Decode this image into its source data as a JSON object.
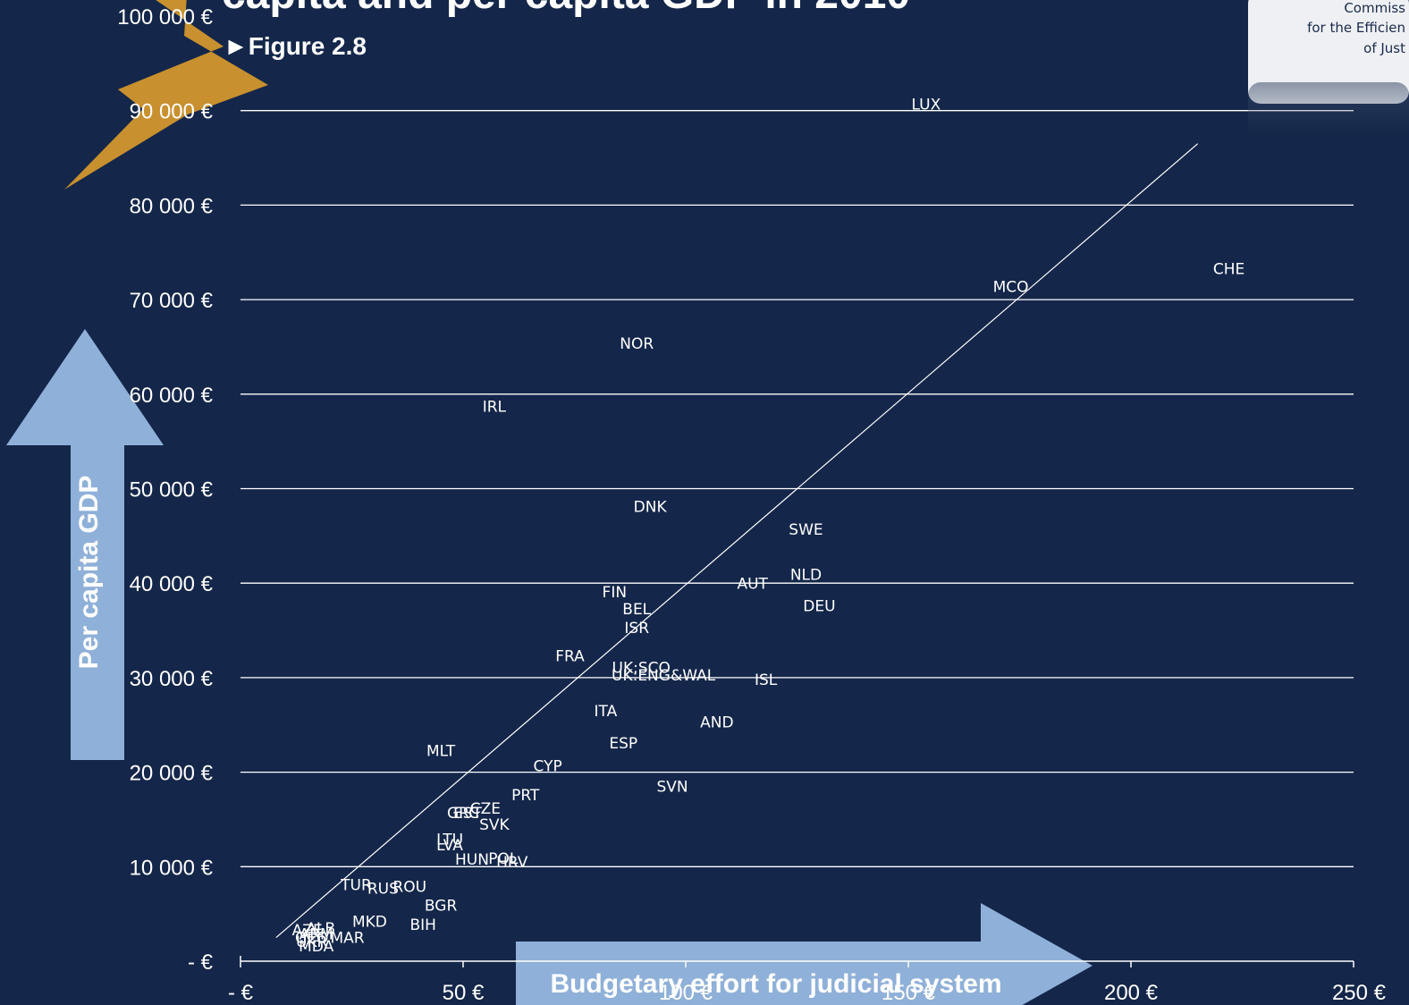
{
  "title": "capita and per capita GDP in 2010",
  "figure_label": "►Figure 2.8",
  "logo": {
    "lines": [
      "Commiss",
      "for the Efficien",
      "of Just"
    ]
  },
  "colors": {
    "background": "#14274a",
    "arrow": "#8fb0d8",
    "gridline": "#ffffff",
    "text": "#ffffff",
    "star": "#c8902e"
  },
  "chart_data": {
    "type": "scatter",
    "xlabel": "Budgetary effort for judicial system",
    "ylabel": "Per capita GDP",
    "xlim": [
      0,
      250
    ],
    "ylim": [
      0,
      100000
    ],
    "x_ticks": [
      0,
      50,
      100,
      150,
      200,
      250
    ],
    "x_tick_labels": [
      "- €",
      "50 €",
      "100 €",
      "150 €",
      "200 €",
      "250 €"
    ],
    "y_ticks": [
      0,
      10000,
      20000,
      30000,
      40000,
      50000,
      60000,
      70000,
      80000,
      90000,
      100000
    ],
    "y_tick_labels": [
      "- €",
      "10 000 €",
      "20 000 €",
      "30 000 €",
      "40 000 €",
      "50 000 €",
      "60 000 €",
      "70 000 €",
      "80 000 €",
      "90 000 €",
      "100 000 €"
    ],
    "grid": true,
    "trendline": {
      "x": [
        8,
        215
      ],
      "y": [
        2500,
        86500
      ]
    },
    "points": [
      {
        "label": "LUX",
        "x": 154,
        "y": 90600
      },
      {
        "label": "CHE",
        "x": 222,
        "y": 73200
      },
      {
        "label": "MCO",
        "x": 173,
        "y": 71300
      },
      {
        "label": "NOR",
        "x": 89,
        "y": 65300
      },
      {
        "label": "IRL",
        "x": 57,
        "y": 58600
      },
      {
        "label": "DNK",
        "x": 92,
        "y": 48000
      },
      {
        "label": "SWE",
        "x": 127,
        "y": 45600
      },
      {
        "label": "NLD",
        "x": 127,
        "y": 40800
      },
      {
        "label": "AUT",
        "x": 115,
        "y": 39900
      },
      {
        "label": "DEU",
        "x": 130,
        "y": 37500
      },
      {
        "label": "FIN",
        "x": 84,
        "y": 39000
      },
      {
        "label": "BEL",
        "x": 89,
        "y": 37200
      },
      {
        "label": "ISR",
        "x": 89,
        "y": 35200
      },
      {
        "label": "FRA",
        "x": 74,
        "y": 32200
      },
      {
        "label": "UK:SCO",
        "x": 90,
        "y": 31000
      },
      {
        "label": "UK:ENG&WAL",
        "x": 95,
        "y": 30200
      },
      {
        "label": "ISL",
        "x": 118,
        "y": 29700
      },
      {
        "label": "ITA",
        "x": 82,
        "y": 26400
      },
      {
        "label": "AND",
        "x": 107,
        "y": 25200
      },
      {
        "label": "ESP",
        "x": 86,
        "y": 23000
      },
      {
        "label": "MLT",
        "x": 45,
        "y": 22200
      },
      {
        "label": "CYP",
        "x": 69,
        "y": 20600
      },
      {
        "label": "SVN",
        "x": 97,
        "y": 18400
      },
      {
        "label": "PRT",
        "x": 64,
        "y": 17500
      },
      {
        "label": "GRC",
        "x": 50,
        "y": 15600
      },
      {
        "label": "EST",
        "x": 51,
        "y": 15600
      },
      {
        "label": "CZE",
        "x": 55,
        "y": 16100
      },
      {
        "label": "SVK",
        "x": 57,
        "y": 14400
      },
      {
        "label": "LTU",
        "x": 47,
        "y": 12800
      },
      {
        "label": "LVA",
        "x": 47,
        "y": 12200
      },
      {
        "label": "HUN",
        "x": 52,
        "y": 10700
      },
      {
        "label": "POL",
        "x": 59,
        "y": 10800
      },
      {
        "label": "HRV",
        "x": 61,
        "y": 10400
      },
      {
        "label": "TUR",
        "x": 26,
        "y": 8000
      },
      {
        "label": "RUS",
        "x": 32,
        "y": 7600
      },
      {
        "label": "ROU",
        "x": 38,
        "y": 7800
      },
      {
        "label": "BGR",
        "x": 45,
        "y": 5800
      },
      {
        "label": "MKD",
        "x": 29,
        "y": 4100
      },
      {
        "label": "BIH",
        "x": 41,
        "y": 3800
      },
      {
        "label": "ALB",
        "x": 18,
        "y": 3400
      },
      {
        "label": "AZE",
        "x": 15,
        "y": 3200
      },
      {
        "label": "ARM",
        "x": 17,
        "y": 2800
      },
      {
        "label": "GEO",
        "x": 16,
        "y": 2400
      },
      {
        "label": "MAR",
        "x": 24,
        "y": 2400
      },
      {
        "label": "UKR",
        "x": 16,
        "y": 2000
      },
      {
        "label": "MDA",
        "x": 17,
        "y": 1500
      }
    ]
  }
}
